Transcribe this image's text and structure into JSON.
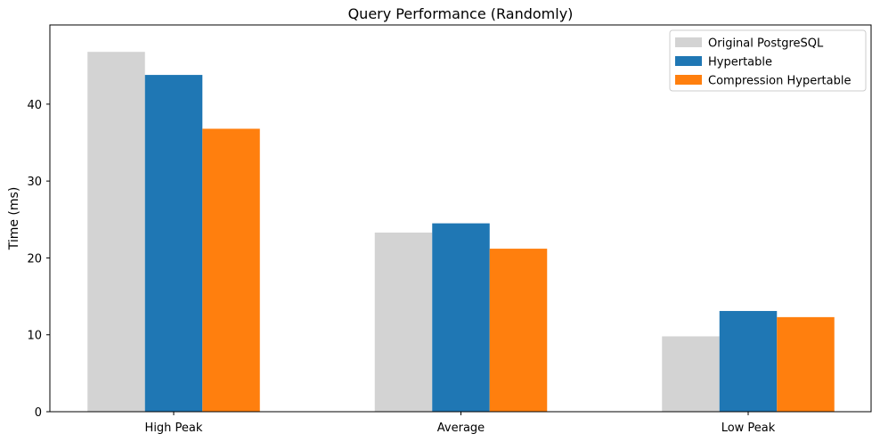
{
  "chart_data": {
    "type": "bar",
    "title": "Query Performance (Randomly)",
    "xlabel": "",
    "ylabel": "Time (ms)",
    "categories": [
      "High Peak",
      "Average",
      "Low Peak"
    ],
    "series": [
      {
        "name": "Original PostgreSQL",
        "color": "#d3d3d3",
        "values": [
          46.8,
          23.3,
          9.8
        ]
      },
      {
        "name": "Hypertable",
        "color": "#1f77b4",
        "values": [
          43.8,
          24.5,
          13.1
        ]
      },
      {
        "name": "Compression Hypertable",
        "color": "#ff7f0e",
        "values": [
          36.8,
          21.2,
          12.3
        ]
      }
    ],
    "ylim": [
      0,
      50.3
    ],
    "yticks": [
      0,
      10,
      20,
      30,
      40
    ],
    "grid": false,
    "legend_position": "top-right"
  }
}
